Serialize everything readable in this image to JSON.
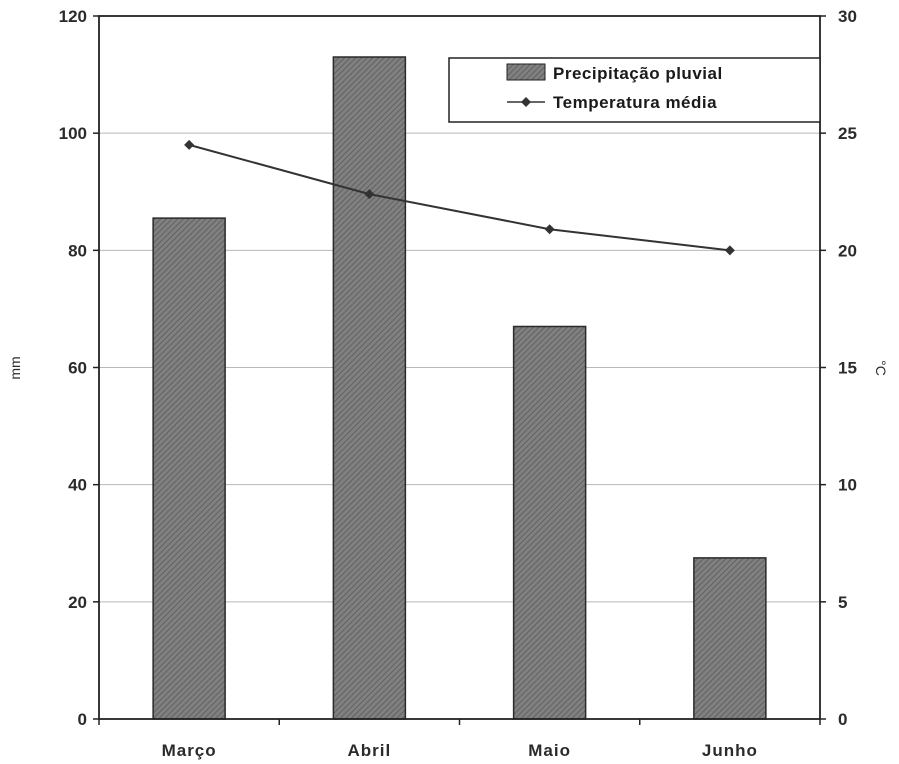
{
  "chart_data": {
    "type": "bar",
    "categories": [
      "Março",
      "Abril",
      "Maio",
      "Junho"
    ],
    "series": [
      {
        "name": "Precipitação pluvial",
        "type": "bar",
        "axis": "left",
        "values": [
          85.5,
          113,
          67,
          27.5
        ]
      },
      {
        "name": "Temperatura média",
        "type": "line",
        "axis": "right",
        "values": [
          24.5,
          22.4,
          20.9,
          20
        ]
      }
    ],
    "ylabel": "mm",
    "ylim": [
      0,
      120
    ],
    "yticks": [
      "0",
      "20",
      "40",
      "60",
      "80",
      "100",
      "120"
    ],
    "y2label": "°C",
    "y2lim": [
      0,
      30
    ],
    "y2ticks": [
      "0",
      "5",
      "10",
      "15",
      "20",
      "25",
      "30"
    ],
    "grid": true,
    "legend_position": "top-right"
  },
  "colors": {
    "bar_fill": "#7a7a7a",
    "bar_stroke": "#2a2a2a",
    "line": "#333333",
    "grid": "#b8b8b8",
    "axis": "#222222"
  }
}
